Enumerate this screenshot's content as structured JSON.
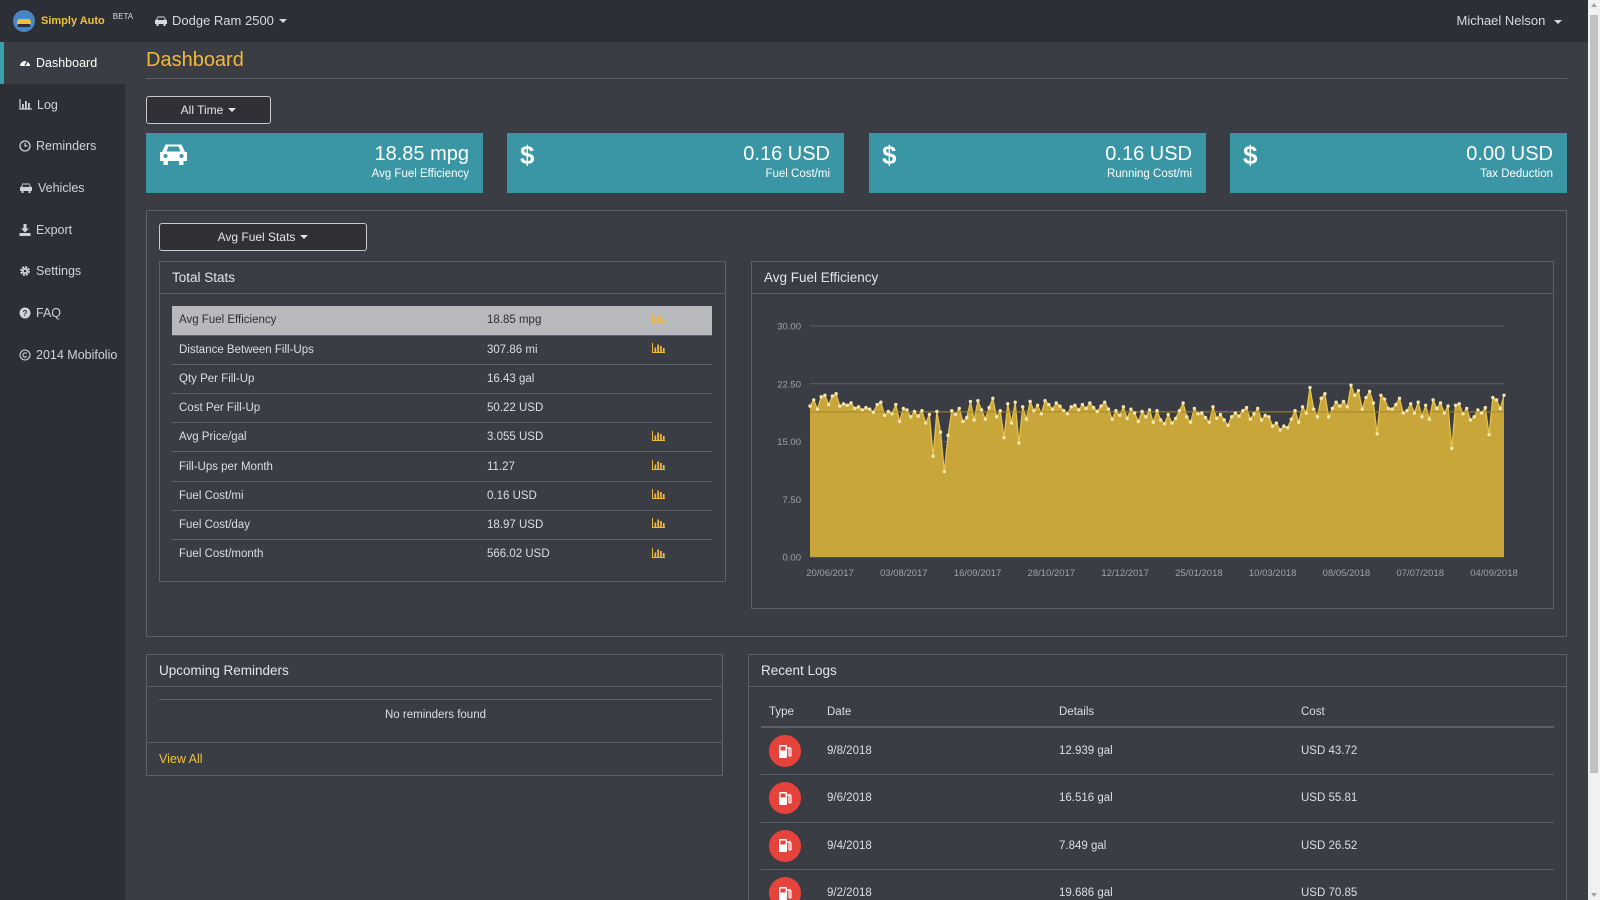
{
  "brand": {
    "name": "Simply Auto",
    "badge": "BETA"
  },
  "header": {
    "vehicle": "Dodge Ram 2500",
    "user": "Michael Nelson"
  },
  "sidebar": {
    "items": [
      {
        "label": "Dashboard",
        "icon": "dashboard-icon"
      },
      {
        "label": "Log",
        "icon": "bar-chart-icon"
      },
      {
        "label": "Reminders",
        "icon": "clock-icon"
      },
      {
        "label": "Vehicles",
        "icon": "car-icon"
      },
      {
        "label": "Export",
        "icon": "download-icon"
      },
      {
        "label": "Settings",
        "icon": "gear-icon"
      },
      {
        "label": "FAQ",
        "icon": "question-icon"
      },
      {
        "label": "2014 Mobifolio",
        "icon": "copyright-icon"
      }
    ]
  },
  "page": {
    "title": "Dashboard",
    "range_button": "All Time"
  },
  "cards": [
    {
      "value": "18.85 mpg",
      "label": "Avg Fuel Efficiency",
      "icon": "car-icon"
    },
    {
      "value": "0.16 USD",
      "label": "Fuel Cost/mi",
      "icon": "dollar-icon"
    },
    {
      "value": "0.16 USD",
      "label": "Running Cost/mi",
      "icon": "dollar-icon"
    },
    {
      "value": "0.00 USD",
      "label": "Tax Deduction",
      "icon": "dollar-icon"
    }
  ],
  "stats": {
    "dropdown": "Avg Fuel Stats",
    "panel_title": "Total Stats",
    "rows": [
      {
        "label": "Avg Fuel Efficiency",
        "value": "18.85 mpg",
        "chart": true
      },
      {
        "label": "Distance Between Fill-Ups",
        "value": "307.86 mi",
        "chart": true
      },
      {
        "label": "Qty Per Fill-Up",
        "value": "16.43 gal",
        "chart": false
      },
      {
        "label": "Cost Per Fill-Up",
        "value": "50.22 USD",
        "chart": false
      },
      {
        "label": "Avg Price/gal",
        "value": "3.055 USD",
        "chart": true
      },
      {
        "label": "Fill-Ups per Month",
        "value": "11.27",
        "chart": true
      },
      {
        "label": "Fuel Cost/mi",
        "value": "0.16 USD",
        "chart": true
      },
      {
        "label": "Fuel Cost/day",
        "value": "18.97 USD",
        "chart": true
      },
      {
        "label": "Fuel Cost/month",
        "value": "566.02 USD",
        "chart": true
      }
    ]
  },
  "chart_data": {
    "type": "area",
    "title": "Avg Fuel Efficiency",
    "ylim": [
      0,
      30
    ],
    "yticks": [
      "0.00",
      "7.50",
      "15.00",
      "22.50",
      "30.00"
    ],
    "xticks": [
      "20/06/2017",
      "03/08/2017",
      "16/09/2017",
      "28/10/2017",
      "12/12/2017",
      "25/01/2018",
      "10/03/2018",
      "08/05/2018",
      "07/07/2018",
      "04/09/2018"
    ],
    "x_start": "2017-06-12",
    "x_end": "2018-09-10",
    "average": 18.85,
    "color": "#c9a63a",
    "values": [
      19.6,
      20.4,
      19.2,
      20.8,
      21.0,
      19.8,
      20.9,
      21.2,
      19.6,
      19.9,
      19.7,
      20.0,
      19.3,
      19.5,
      19.1,
      19.4,
      19.2,
      18.8,
      19.8,
      20.1,
      18.4,
      18.9,
      18.6,
      19.8,
      17.6,
      19.3,
      19.1,
      18.2,
      18.9,
      18.3,
      19.0,
      17.4,
      18.5,
      13.1,
      18.9,
      16.2,
      11.1,
      15.8,
      19.0,
      18.5,
      19.3,
      17.6,
      18.1,
      20.2,
      17.8,
      20.3,
      19.1,
      17.9,
      19.4,
      20.6,
      18.2,
      19.0,
      15.5,
      19.9,
      17.4,
      20.1,
      14.8,
      19.5,
      17.9,
      20.2,
      19.0,
      19.7,
      18.6,
      20.3,
      19.8,
      19.2,
      20.0,
      19.6,
      19.0,
      18.6,
      19.5,
      19.7,
      19.1,
      19.8,
      19.3,
      20.0,
      19.4,
      18.9,
      19.6,
      20.1,
      19.2,
      17.9,
      19.0,
      18.4,
      19.5,
      18.0,
      19.2,
      18.7,
      17.6,
      18.9,
      18.2,
      19.1,
      17.5,
      19.0,
      17.8,
      17.3,
      18.5,
      17.4,
      18.0,
      19.0,
      20.0,
      18.2,
      17.5,
      19.3,
      18.6,
      18.7,
      18.1,
      17.5,
      19.5,
      18.0,
      18.5,
      17.8,
      17.1,
      18.2,
      18.7,
      18.3,
      19.0,
      19.4,
      17.9,
      18.6,
      19.3,
      17.8,
      18.4,
      18.2,
      17.0,
      17.4,
      16.5,
      17.0,
      16.8,
      17.9,
      19.0,
      17.5,
      19.5,
      18.7,
      22.0,
      19.2,
      18.2,
      20.6,
      21.2,
      18.2,
      19.3,
      20.1,
      19.6,
      20.2,
      19.5,
      22.3,
      21.0,
      21.6,
      19.2,
      20.7,
      21.5,
      20.0,
      16.0,
      21.0,
      20.5,
      19.3,
      19.2,
      19.8,
      20.6,
      18.7,
      19.0,
      19.9,
      18.7,
      20.1,
      18.2,
      19.7,
      17.9,
      20.4,
      19.3,
      20.0,
      18.7,
      19.6,
      14.1,
      19.7,
      19.9,
      18.6,
      19.3,
      17.8,
      18.2,
      19.1,
      18.7,
      19.4,
      15.9,
      20.7,
      20.4,
      19.3,
      21.0
    ]
  },
  "reminders": {
    "title": "Upcoming Reminders",
    "empty": "No reminders found",
    "view_all": "View All"
  },
  "logs": {
    "title": "Recent Logs",
    "columns": [
      "Type",
      "Date",
      "Details",
      "Cost"
    ],
    "rows": [
      {
        "type": "fuel-pump-icon",
        "date": "9/8/2018",
        "details": "12.939 gal",
        "cost": "USD 43.72"
      },
      {
        "type": "fuel-pump-icon",
        "date": "9/6/2018",
        "details": "16.516 gal",
        "cost": "USD 55.81"
      },
      {
        "type": "fuel-pump-icon",
        "date": "9/4/2018",
        "details": "7.849 gal",
        "cost": "USD 26.52"
      },
      {
        "type": "fuel-pump-icon",
        "date": "9/2/2018",
        "details": "19.686 gal",
        "cost": "USD 70.85"
      }
    ]
  },
  "colors": {
    "accent": "#3a96a4",
    "title": "#f0b93a",
    "link": "#f0c13a",
    "fuel": "#e5433b",
    "bg": "#3b3d45",
    "nav_bg": "#2d2f36"
  }
}
